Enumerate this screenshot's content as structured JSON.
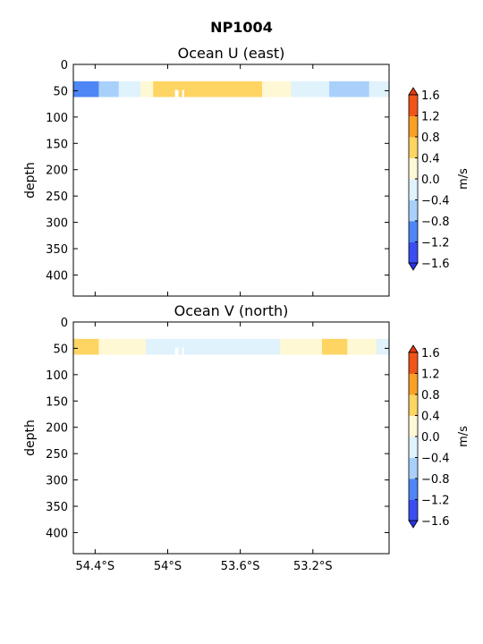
{
  "figure": {
    "title": "NP1004",
    "x_tick_labels": [
      "54.4°S",
      "54°S",
      "53.6°S",
      "53.2°S"
    ],
    "x_ticks": [
      -54.4,
      -54.0,
      -53.6,
      -53.2
    ],
    "xlim": [
      -54.52,
      -52.78
    ],
    "colorbar": {
      "unit": "m/s",
      "tick_labels": [
        "−1.6",
        "−1.2",
        "−0.8",
        "−0.4",
        "0.0",
        "0.4",
        "0.8",
        "1.2",
        "1.6"
      ],
      "levels": [
        -1.6,
        -1.2,
        -0.8,
        -0.4,
        0.0,
        0.4,
        0.8,
        1.2,
        1.6
      ],
      "colors": [
        "#3a4df2",
        "#4f86f5",
        "#a9d0fa",
        "#e0f2fc",
        "#fff8d4",
        "#fed463",
        "#fba026",
        "#ef5518"
      ],
      "under_color": "#2b32e6",
      "over_color": "#e6390f"
    }
  },
  "chart_data": [
    {
      "type": "contourf",
      "title": "Ocean U (east)",
      "ylabel": "depth",
      "ylim": [
        440,
        0
      ],
      "y_tick_labels": [
        "0",
        "50",
        "100",
        "150",
        "200",
        "250",
        "300",
        "350",
        "400"
      ],
      "y_ticks": [
        0,
        50,
        100,
        150,
        200,
        250,
        300,
        350,
        400
      ],
      "depth_band": [
        32,
        62
      ],
      "segments": [
        {
          "x0": -54.52,
          "x1": -54.38,
          "bin": "-1.2 to -0.8"
        },
        {
          "x0": -54.38,
          "x1": -54.27,
          "bin": "-0.8 to -0.4"
        },
        {
          "x0": -54.27,
          "x1": -54.15,
          "bin": "-0.4 to 0.0"
        },
        {
          "x0": -54.15,
          "x1": -54.08,
          "bin": "0.0 to 0.4"
        },
        {
          "x0": -54.08,
          "x1": -53.48,
          "bin": "0.4 to 0.8"
        },
        {
          "x0": -53.48,
          "x1": -53.32,
          "bin": "0.0 to 0.4"
        },
        {
          "x0": -53.32,
          "x1": -53.11,
          "bin": "-0.4 to 0.0"
        },
        {
          "x0": -53.11,
          "x1": -52.89,
          "bin": "-0.8 to -0.4"
        },
        {
          "x0": -52.89,
          "x1": -52.78,
          "bin": "-0.4 to 0.0"
        }
      ]
    },
    {
      "type": "contourf",
      "title": "Ocean V (north)",
      "ylabel": "depth",
      "ylim": [
        440,
        0
      ],
      "y_tick_labels": [
        "0",
        "50",
        "100",
        "150",
        "200",
        "250",
        "300",
        "350",
        "400"
      ],
      "y_ticks": [
        0,
        50,
        100,
        150,
        200,
        250,
        300,
        350,
        400
      ],
      "depth_band": [
        32,
        62
      ],
      "segments": [
        {
          "x0": -54.52,
          "x1": -54.38,
          "bin": "0.4 to 0.8"
        },
        {
          "x0": -54.38,
          "x1": -54.12,
          "bin": "0.0 to 0.4"
        },
        {
          "x0": -54.12,
          "x1": -53.38,
          "bin": "-0.4 to 0.0"
        },
        {
          "x0": -53.38,
          "x1": -53.15,
          "bin": "0.0 to 0.4"
        },
        {
          "x0": -53.15,
          "x1": -53.01,
          "bin": "0.4 to 0.8"
        },
        {
          "x0": -53.01,
          "x1": -52.85,
          "bin": "0.0 to 0.4"
        },
        {
          "x0": -52.85,
          "x1": -52.78,
          "bin": "-0.4 to 0.0"
        }
      ]
    }
  ]
}
